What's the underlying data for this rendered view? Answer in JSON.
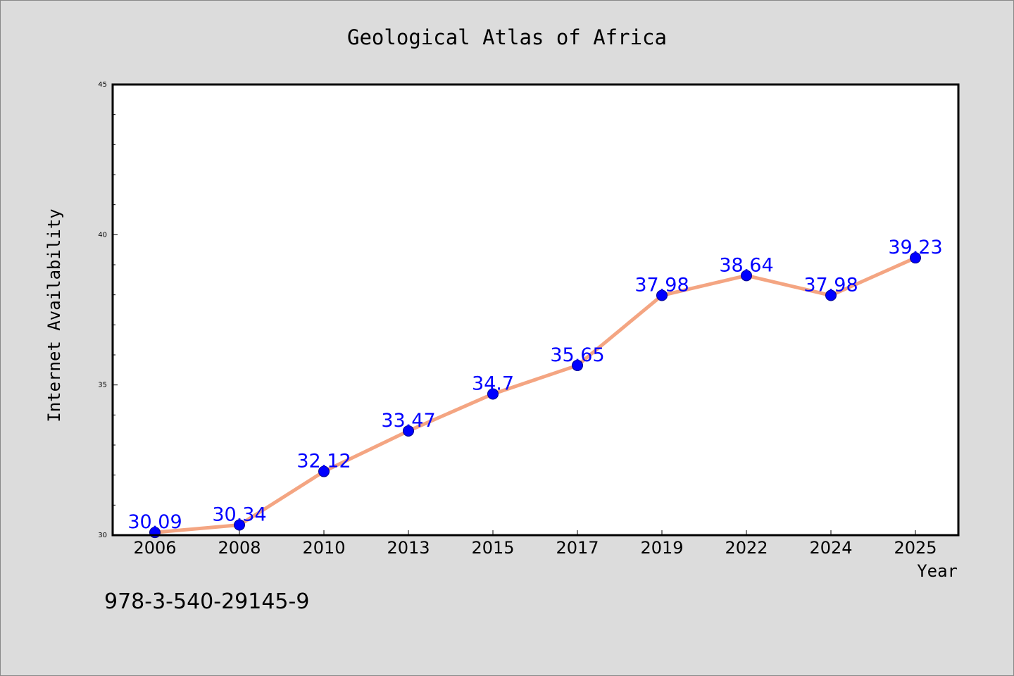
{
  "chart_data": {
    "type": "line",
    "title": "Geological Atlas of Africa",
    "xlabel": "Year",
    "ylabel": "Internet Availability",
    "categories": [
      "2006",
      "2008",
      "2010",
      "2013",
      "2015",
      "2017",
      "2019",
      "2022",
      "2024",
      "2025"
    ],
    "series": [
      {
        "values": [
          30.09,
          30.34,
          32.12,
          33.47,
          34.7,
          35.65,
          37.98,
          38.64,
          37.98,
          39.23
        ],
        "labels": [
          "30.09",
          "30.34",
          "32.12",
          "33.47",
          "34.7",
          "35.65",
          "37.98",
          "38.64",
          "37.98",
          "39.23"
        ]
      }
    ],
    "ylim": [
      30,
      45
    ],
    "yticks": [
      "30",
      "35",
      "40",
      "45"
    ],
    "grid": false,
    "legend": "none",
    "annotation": "978-3-540-29145-9",
    "colors": {
      "line": "#f4a582",
      "marker": "#0000ff",
      "marker_edge": "#00008b",
      "data_label": "#0000ff",
      "background": "#dcdcdc",
      "plot_background": "#ffffff"
    }
  }
}
